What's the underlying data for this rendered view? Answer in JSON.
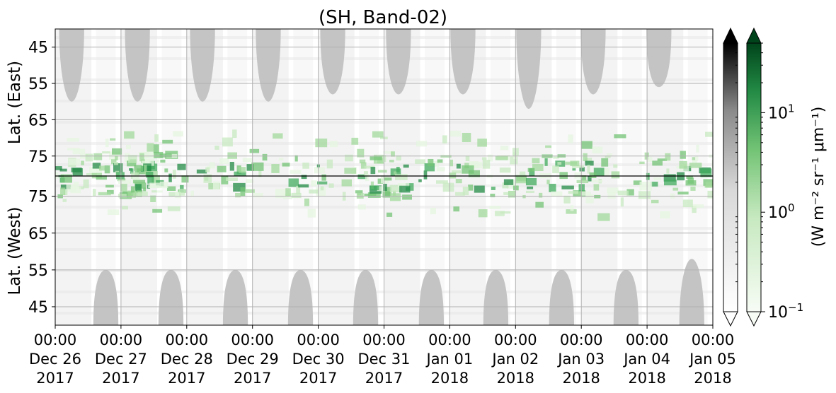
{
  "chart_data": {
    "type": "heatmap",
    "title": "(SH, Band-02)",
    "ylabel_top": "Lat. (East)",
    "ylabel_bottom": "Lat. (West)",
    "top_panel_ticks": [
      "45",
      "55",
      "65",
      "75"
    ],
    "top_panel_tick_values": [
      45,
      55,
      65,
      75
    ],
    "bottom_panel_ticks": [
      "75",
      "65",
      "55",
      "45"
    ],
    "bottom_panel_tick_values": [
      75,
      65,
      55,
      45
    ],
    "top_panel_range": [
      40,
      80.5
    ],
    "bottom_panel_range": [
      80.5,
      40
    ],
    "x_ticks": [
      [
        "00:00",
        "Dec 26",
        "2017"
      ],
      [
        "00:00",
        "Dec 27",
        "2017"
      ],
      [
        "00:00",
        "Dec 28",
        "2017"
      ],
      [
        "00:00",
        "Dec 29",
        "2017"
      ],
      [
        "00:00",
        "Dec 30",
        "2017"
      ],
      [
        "00:00",
        "Dec 31",
        "2017"
      ],
      [
        "00:00",
        "Jan 01",
        "2018"
      ],
      [
        "00:00",
        "Jan 02",
        "2018"
      ],
      [
        "00:00",
        "Jan 03",
        "2018"
      ],
      [
        "00:00",
        "Jan 04",
        "2018"
      ],
      [
        "00:00",
        "Jan 05",
        "2018"
      ]
    ],
    "x_range": [
      "2017-12-26 00:00",
      "2018-01-05 00:00"
    ],
    "grid": true,
    "colorbars": [
      {
        "name": "gray",
        "colors": [
          "#ffffff",
          "#000000"
        ],
        "extend": "both"
      },
      {
        "name": "green",
        "colors": [
          "#f7fcf5",
          "#00441b"
        ],
        "extend": "both"
      }
    ],
    "colorbar_label": "(W m⁻² sr⁻¹ μm⁻¹)",
    "colorbar_scale": "log",
    "colorbar_range": [
      0.1,
      50
    ],
    "colorbar_ticks": [
      {
        "value": 0.1,
        "base": "10",
        "exp": "−1"
      },
      {
        "value": 1,
        "base": "10",
        "exp": "0"
      },
      {
        "value": 10,
        "base": "10",
        "exp": "1"
      }
    ]
  }
}
